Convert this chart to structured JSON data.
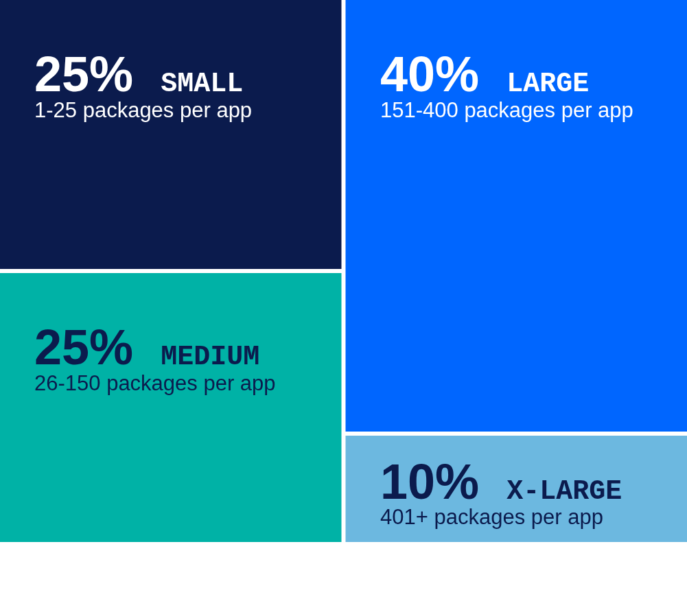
{
  "chart_data": {
    "type": "other",
    "categories": [
      "SMALL",
      "MEDIUM",
      "LARGE",
      "X-LARGE"
    ],
    "values": [
      25,
      25,
      40,
      10
    ],
    "value_labels": [
      "25%",
      "25%",
      "40%",
      "10%"
    ],
    "colors": [
      "#0b1b4d",
      "#00b2a6",
      "#0066ff",
      "#6cb8e0"
    ],
    "annotations": [
      "1-25 packages per app",
      "26-150 packages per app",
      "151-400 packages per app",
      "401+ packages per app"
    ]
  }
}
